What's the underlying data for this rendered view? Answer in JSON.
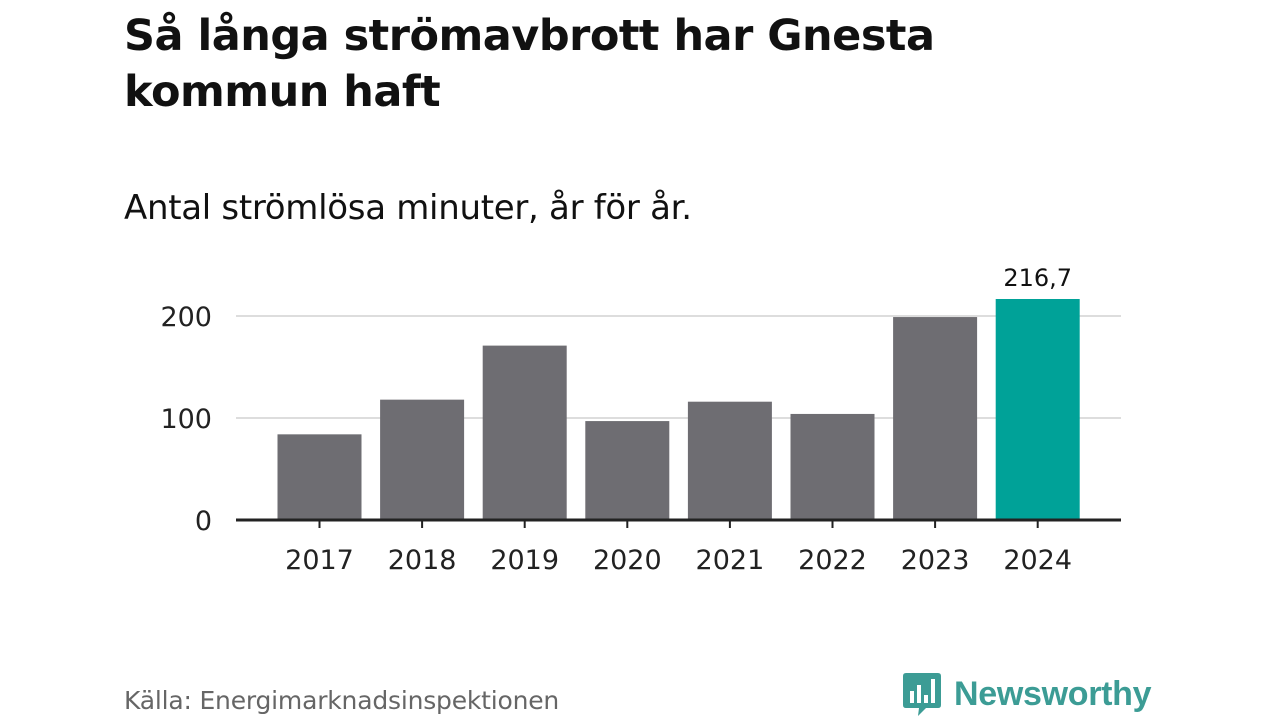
{
  "title": "Så långa strömavbrott har Gnesta kommun haft",
  "subtitle": "Antal strömlösa minuter, år för år.",
  "source": "Källa: Energimarknadsinspektionen",
  "brand": "Newsworthy",
  "colors": {
    "bar": "#6e6d72",
    "highlight": "#00a298",
    "grid": "#dddddd",
    "axis": "#222222",
    "brand": "#3c9c95"
  },
  "chart_data": {
    "type": "bar",
    "title": "Så långa strömavbrott har Gnesta kommun haft",
    "subtitle": "Antal strömlösa minuter, år för år.",
    "xlabel": "",
    "ylabel": "",
    "categories": [
      "2017",
      "2018",
      "2019",
      "2020",
      "2021",
      "2022",
      "2023",
      "2024"
    ],
    "values": [
      84,
      118,
      171,
      97,
      116,
      104,
      199,
      216.7
    ],
    "highlight_index": 7,
    "data_labels": [
      {
        "index": 7,
        "text": "216,7"
      }
    ],
    "yticks": [
      0,
      100,
      200
    ],
    "ytick_labels": [
      "0",
      "100",
      "200"
    ],
    "ylim": [
      0,
      216.7
    ],
    "grid": true
  }
}
